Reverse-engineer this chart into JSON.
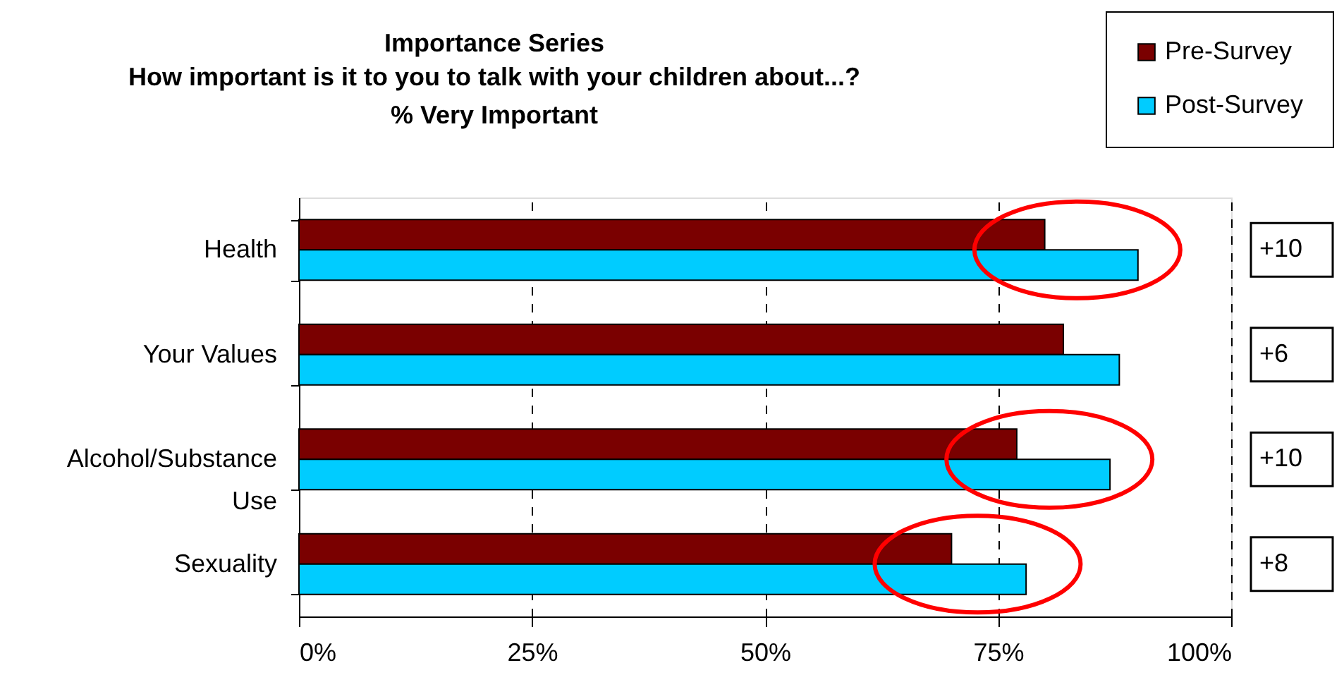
{
  "chart_data": {
    "type": "bar",
    "orientation": "horizontal",
    "title": "Importance Series",
    "subtitle": "How important is it to you to talk with your children about...?\n% Very Important",
    "categories": [
      "Health",
      "Your Values",
      "Alcohol/Substance Use",
      "Sexuality"
    ],
    "series": [
      {
        "name": "Pre-Survey",
        "color": "#7a0000",
        "values": [
          80,
          82,
          77,
          70
        ]
      },
      {
        "name": "Post-Survey",
        "color": "#00ccff",
        "values": [
          90,
          88,
          87,
          78
        ]
      }
    ],
    "xlim": [
      0,
      100
    ],
    "xticks": [
      {
        "value": 0,
        "label": "0%"
      },
      {
        "value": 25,
        "label": "25%"
      },
      {
        "value": 50,
        "label": "50%"
      },
      {
        "value": 75,
        "label": "75%"
      },
      {
        "value": 100,
        "label": "100%"
      }
    ],
    "grid": "x",
    "legend": "top right",
    "annotations": [
      "+10",
      "+6",
      "+10",
      "+8"
    ]
  }
}
